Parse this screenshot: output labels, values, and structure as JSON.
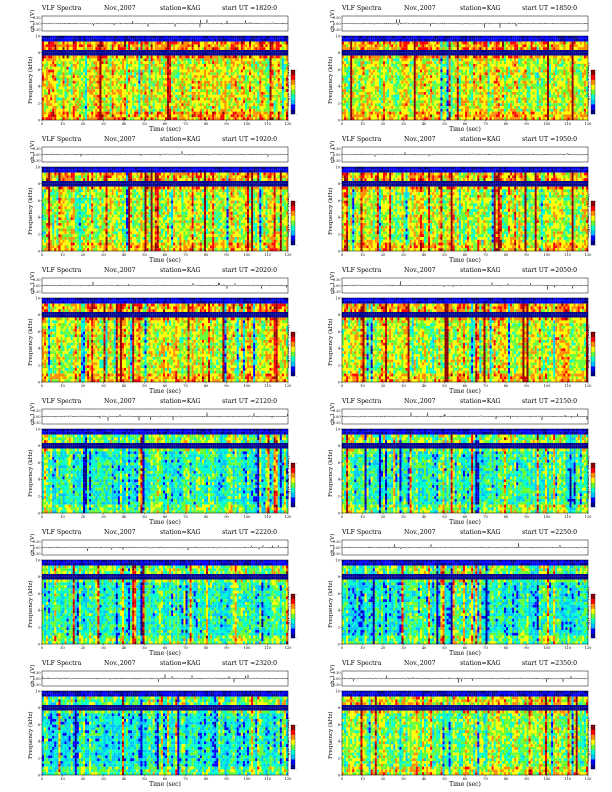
{
  "figure": {
    "ch_axis_label": "ch.1 (V)",
    "freq_axis_label": "Frequency (kHz)",
    "freq_axis_prefix": "ch.1",
    "colorbar_label": "log(PSD(V²/Hz))",
    "x_axis_label": "Time (sec)"
  },
  "panels": [
    {
      "title": "VLF Spectra",
      "date": "Nov.,2007",
      "station": "station=KAG",
      "start": "start UT =1820:0"
    },
    {
      "title": "VLF Spectra",
      "date": "Nov.,2007",
      "station": "station=KAG",
      "start": "start UT =1850:0"
    },
    {
      "title": "VLF Spectra",
      "date": "Nov.,2007",
      "station": "station=KAG",
      "start": "start UT =1920:0"
    },
    {
      "title": "VLF Spectra",
      "date": "Nov.,2007",
      "station": "station=KAG",
      "start": "start UT =1950:0"
    },
    {
      "title": "VLF Spectra",
      "date": "Nov.,2007",
      "station": "station=KAG",
      "start": "start UT =2020:0"
    },
    {
      "title": "VLF Spectra",
      "date": "Nov.,2007",
      "station": "station=KAG",
      "start": "start UT =2050:0"
    },
    {
      "title": "VLF Spectra",
      "date": "Nov.,2007",
      "station": "station=KAG",
      "start": "start UT =2120:0"
    },
    {
      "title": "VLF Spectra",
      "date": "Nov.,2007",
      "station": "station=KAG",
      "start": "start UT =2150:0"
    },
    {
      "title": "VLF Spectra",
      "date": "Nov.,2007",
      "station": "station=KAG",
      "start": "start UT =2220:0"
    },
    {
      "title": "VLF Spectra",
      "date": "Nov.,2007",
      "station": "station=KAG",
      "start": "start UT =2250:0"
    },
    {
      "title": "VLF Spectra",
      "date": "Nov.,2007",
      "station": "station=KAG",
      "start": "start UT =2320:0"
    },
    {
      "title": "VLF Spectra",
      "date": "Nov.,2007",
      "station": "station=KAG",
      "start": "start UT =2350:0"
    }
  ],
  "chart_data": {
    "type": "heatmap",
    "layout": "6 rows x 2 columns of spectrograms",
    "x_ticks": [
      "0",
      "10",
      "20",
      "30",
      "40",
      "50",
      "60",
      "70",
      "80",
      "90",
      "100",
      "110",
      "120"
    ],
    "xlim": [
      0,
      120
    ],
    "freq_ticks": [
      "0",
      "2",
      "4",
      "6",
      "8",
      "10"
    ],
    "ylim_freq_khz": [
      0,
      10
    ],
    "ch_ticks": [
      "0.30",
      "0.00",
      "-0.30"
    ],
    "ylim_ch_v": [
      -0.3,
      0.3
    ],
    "colormap": [
      "#00008f",
      "#0000ff",
      "#00bfff",
      "#00ffcc",
      "#66ff33",
      "#ffff00",
      "#ff8c00",
      "#ff0000",
      "#8b0000"
    ],
    "colorbar_ticks": [
      "-",
      "-"
    ],
    "panel_intensity": [
      0.6,
      0.58,
      0.55,
      0.56,
      0.58,
      0.57,
      0.4,
      0.42,
      0.4,
      0.36,
      0.36,
      0.52
    ]
  }
}
